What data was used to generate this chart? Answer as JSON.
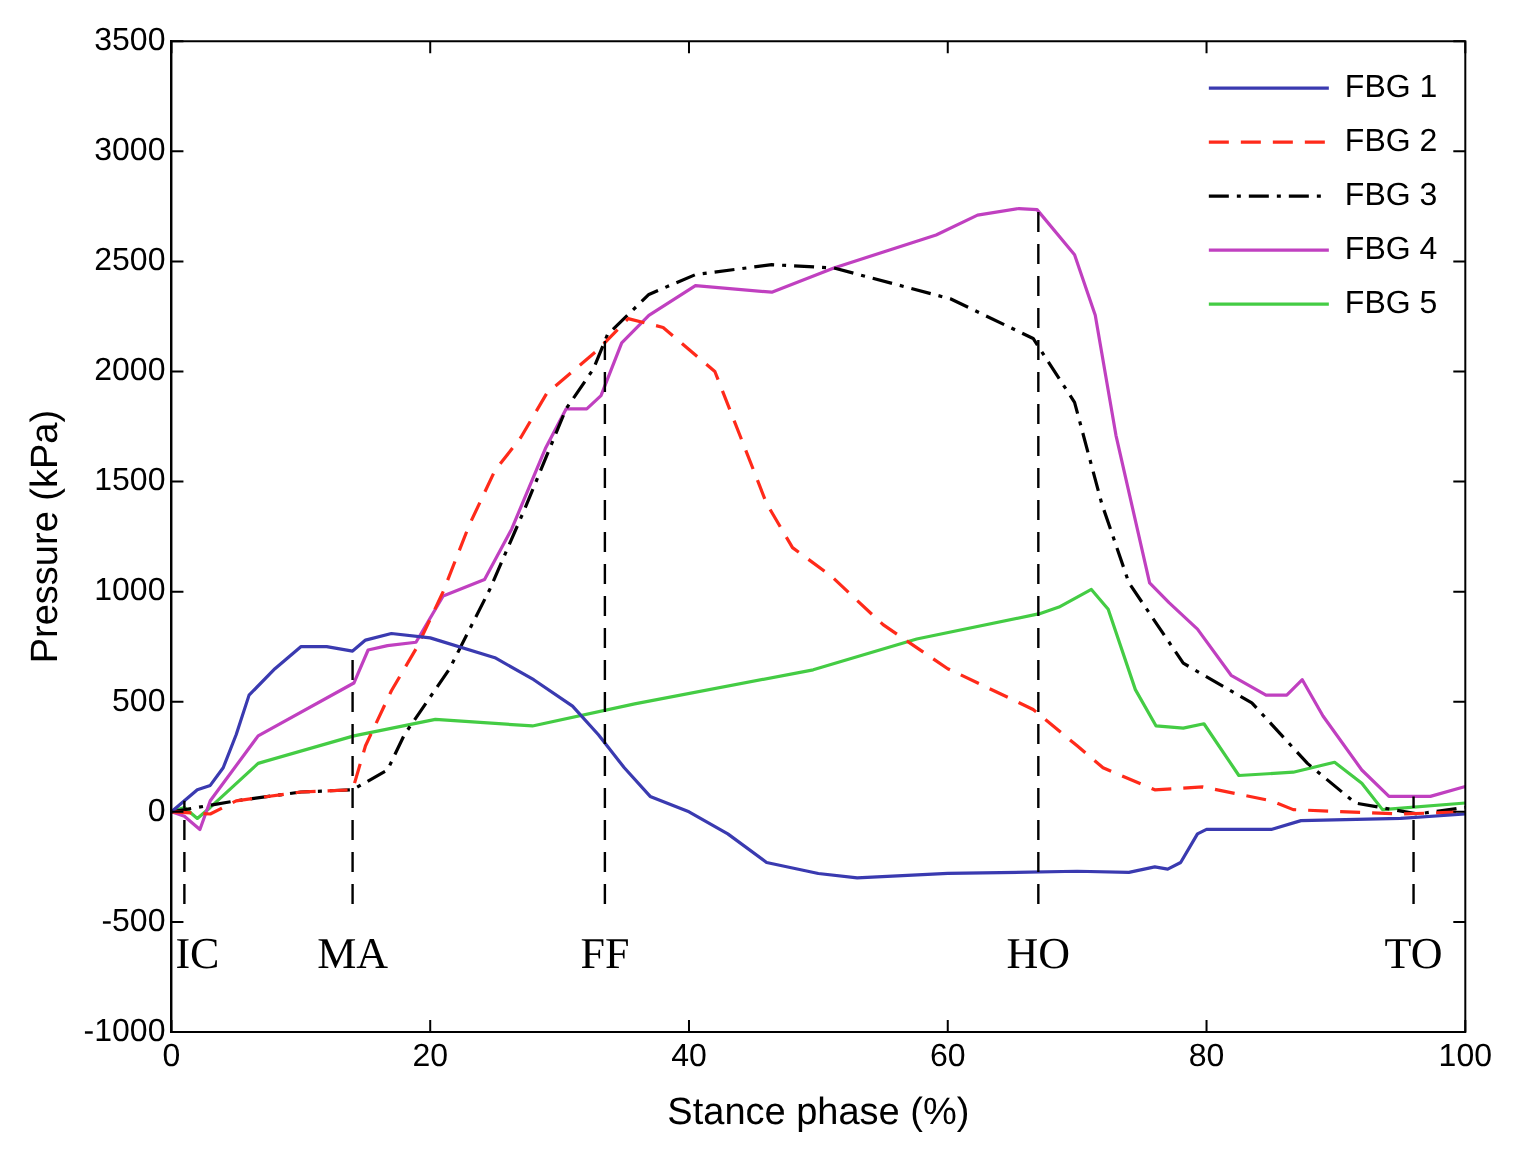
{
  "chart_data": {
    "type": "line",
    "xlabel": "Stance phase (%)",
    "ylabel": "Pressure (kPa)",
    "xlim": [
      0,
      100
    ],
    "xticks": [
      0,
      20,
      40,
      60,
      80,
      100
    ],
    "ylim": [
      -1000,
      3500
    ],
    "yticks": [
      -1000,
      -500,
      0,
      500,
      1000,
      1500,
      2000,
      2500,
      3000,
      3500
    ],
    "grid": false,
    "legend": "top right",
    "marker": "none",
    "series": [
      {
        "name": "FBG 1",
        "color": "#3a3ab0",
        "line_style": "solid",
        "x": [
          0,
          2,
          3,
          4,
          5,
          6,
          8,
          10,
          12,
          14,
          15,
          17,
          20,
          25,
          28,
          31,
          33,
          35,
          37,
          40,
          43,
          46,
          50,
          53,
          60,
          70,
          74,
          76,
          77,
          78,
          79.3,
          80,
          85,
          87.3,
          95,
          100
        ],
        "values": [
          0,
          100,
          120,
          200,
          350,
          530,
          650,
          750,
          750,
          730,
          780,
          810,
          790,
          700,
          600,
          480,
          350,
          200,
          70,
          0,
          -100,
          -230,
          -280,
          -300,
          -280,
          -270,
          -275,
          -250,
          -260,
          -230,
          -100,
          -80,
          -80,
          -40,
          -30,
          -10
        ]
      },
      {
        "name": "FBG 2",
        "color": "#ff2a1a",
        "line_style": "dashed",
        "x": [
          0,
          3,
          5,
          10,
          14,
          15,
          17,
          19,
          21,
          23,
          25,
          27,
          29,
          31,
          33,
          35.3,
          38,
          40,
          42,
          44,
          46,
          48,
          51,
          55,
          60,
          66.6,
          70,
          72,
          76,
          79.7,
          85,
          86.7,
          95,
          100
        ],
        "values": [
          0,
          -10,
          50,
          90,
          100,
          300,
          550,
          750,
          1000,
          1300,
          1550,
          1700,
          1900,
          2000,
          2100,
          2240,
          2200,
          2100,
          2000,
          1700,
          1400,
          1200,
          1070,
          850,
          650,
          465,
          300,
          200,
          100,
          113,
          50,
          10,
          -10,
          0
        ]
      },
      {
        "name": "FBG 3",
        "color": "#000000",
        "line_style": "dashdot",
        "x": [
          0,
          5,
          10,
          14,
          16.7,
          18,
          21.5,
          24.6,
          27.3,
          30.5,
          32.6,
          33.7,
          36.9,
          40.5,
          46.4,
          51.2,
          60.2,
          66.6,
          69.8,
          71.9,
          74,
          78.2,
          83.5,
          87.8,
          91.5,
          96.3,
          100
        ],
        "values": [
          0,
          50,
          90,
          100,
          190,
          350,
          650,
          1010,
          1375,
          1830,
          2010,
          2167,
          2350,
          2440,
          2485,
          2470,
          2330,
          2150,
          1860,
          1400,
          1040,
          675,
          495,
          220,
          40,
          -10,
          20
        ]
      },
      {
        "name": "FBG 4",
        "color": "#c040c0",
        "line_style": "solid",
        "x": [
          0,
          1,
          2.2,
          3,
          6.7,
          14.1,
          15.2,
          16.7,
          18.9,
          21,
          24.2,
          26.3,
          28.9,
          30.5,
          32.1,
          33.2,
          34.8,
          36.9,
          40.5,
          46.4,
          51.2,
          59.1,
          62.3,
          65.5,
          66.9,
          69.8,
          71.4,
          73,
          75.6,
          77.1,
          79.3,
          81.9,
          84.6,
          86.2,
          87.4,
          89,
          92,
          94.1,
          97.3,
          100
        ],
        "values": [
          0,
          -20,
          -80,
          50,
          345,
          585,
          735,
          755,
          770,
          980,
          1055,
          1285,
          1650,
          1830,
          1830,
          1890,
          2130,
          2255,
          2390,
          2360,
          2470,
          2620,
          2710,
          2740,
          2735,
          2530,
          2255,
          1710,
          1040,
          950,
          830,
          620,
          530,
          530,
          600,
          435,
          190,
          70,
          70,
          115
        ]
      },
      {
        "name": "FBG 5",
        "color": "#44cc44",
        "line_style": "solid",
        "x": [
          0,
          1,
          2,
          3,
          6.7,
          14.1,
          20.4,
          27.9,
          35.8,
          49.6,
          57.6,
          67.1,
          68.6,
          71.1,
          72.4,
          74.5,
          76.1,
          78.2,
          79.8,
          82.5,
          86.7,
          89.9,
          92,
          93.6,
          100
        ],
        "values": [
          0,
          20,
          -30,
          20,
          220,
          345,
          420,
          390,
          490,
          645,
          785,
          900,
          930,
          1010,
          920,
          555,
          390,
          380,
          400,
          165,
          180,
          225,
          130,
          10,
          40
        ]
      }
    ],
    "ref_lines": [
      {
        "axis": "x",
        "value": 1,
        "label": "IC",
        "color": "#000000",
        "line_style": "dashed"
      },
      {
        "axis": "x",
        "value": 14,
        "label": "MA",
        "color": "#000000",
        "line_style": "dashed"
      },
      {
        "axis": "x",
        "value": 33.5,
        "label": "FF",
        "color": "#000000",
        "line_style": "dashed"
      },
      {
        "axis": "x",
        "value": 67,
        "label": "HO",
        "color": "#000000",
        "line_style": "dashed"
      },
      {
        "axis": "x",
        "value": 96,
        "label": "TO",
        "color": "#000000",
        "line_style": "dashed"
      }
    ]
  }
}
